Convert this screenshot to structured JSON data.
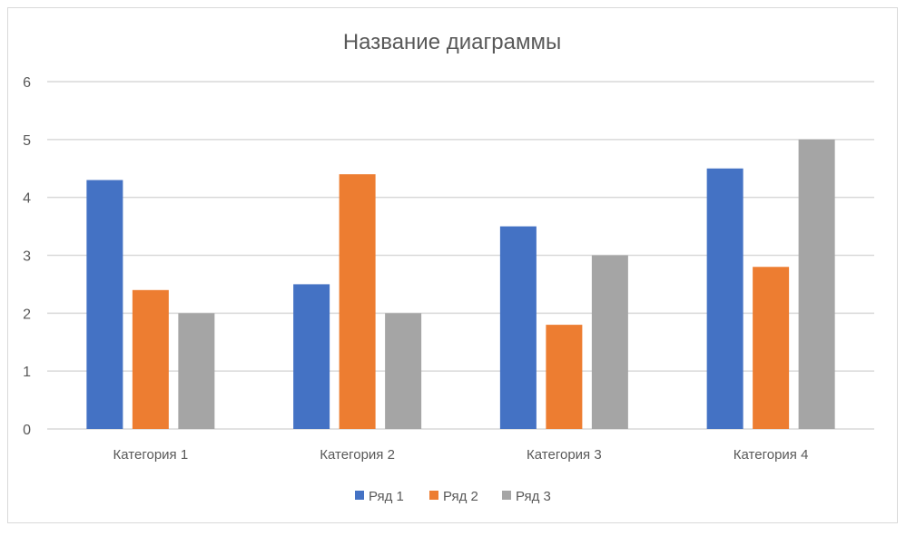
{
  "chart_data": {
    "type": "bar",
    "title": "Название диаграммы",
    "xlabel": "",
    "ylabel": "",
    "ylim": [
      0,
      6
    ],
    "yticks": [
      0,
      1,
      2,
      3,
      4,
      5,
      6
    ],
    "grid": true,
    "legend_position": "bottom",
    "categories": [
      "Категория 1",
      "Категория 2",
      "Категория 3",
      "Категория 4"
    ],
    "series": [
      {
        "name": "Ряд 1",
        "color": "#4472c4",
        "values": [
          4.3,
          2.5,
          3.5,
          4.5
        ]
      },
      {
        "name": "Ряд 2",
        "color": "#ed7d31",
        "values": [
          2.4,
          4.4,
          1.8,
          2.8
        ]
      },
      {
        "name": "Ряд 3",
        "color": "#a5a5a5",
        "values": [
          2,
          2,
          3,
          5
        ]
      }
    ]
  }
}
